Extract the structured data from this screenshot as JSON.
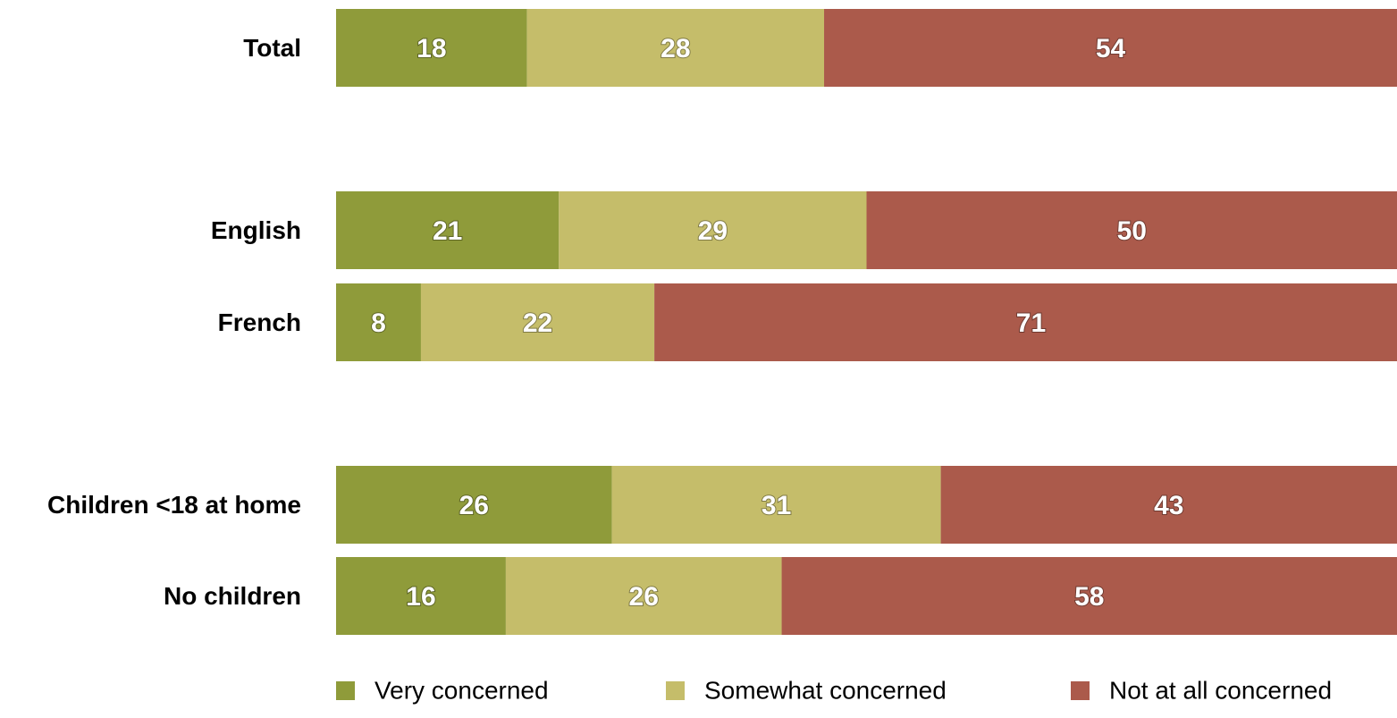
{
  "chart_data": {
    "type": "bar",
    "orientation": "horizontal",
    "stacked": true,
    "xlim": [
      0,
      100
    ],
    "grid": false,
    "legend_position": "bottom",
    "categories": [
      "Total",
      "English",
      "French",
      "Children <18 at home",
      "No children"
    ],
    "series": [
      {
        "name": "Very concerned",
        "color": "#8f9b3a",
        "values": [
          18,
          21,
          8,
          26,
          16
        ]
      },
      {
        "name": "Somewhat concerned",
        "color": "#c5bd6a",
        "values": [
          28,
          29,
          22,
          31,
          26
        ]
      },
      {
        "name": "Not at all concerned",
        "color": "#ab5a4b",
        "values": [
          54,
          50,
          71,
          43,
          58
        ]
      }
    ]
  }
}
